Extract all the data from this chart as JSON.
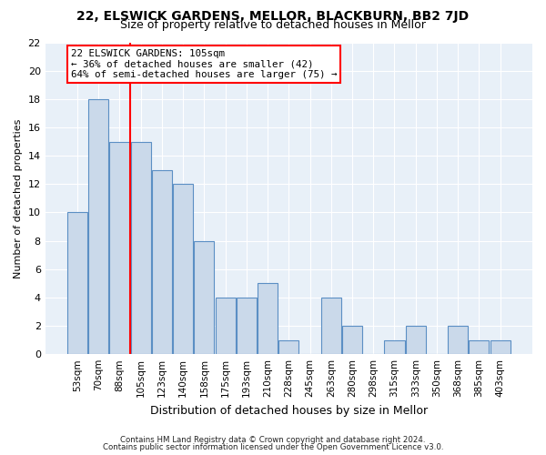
{
  "title1": "22, ELSWICK GARDENS, MELLOR, BLACKBURN, BB2 7JD",
  "title2": "Size of property relative to detached houses in Mellor",
  "xlabel": "Distribution of detached houses by size in Mellor",
  "ylabel": "Number of detached properties",
  "categories": [
    "53sqm",
    "70sqm",
    "88sqm",
    "105sqm",
    "123sqm",
    "140sqm",
    "158sqm",
    "175sqm",
    "193sqm",
    "210sqm",
    "228sqm",
    "245sqm",
    "263sqm",
    "280sqm",
    "298sqm",
    "315sqm",
    "333sqm",
    "350sqm",
    "368sqm",
    "385sqm",
    "403sqm"
  ],
  "values": [
    10,
    18,
    15,
    15,
    13,
    12,
    8,
    4,
    4,
    5,
    1,
    0,
    4,
    2,
    0,
    1,
    2,
    0,
    2,
    1,
    1
  ],
  "bar_color": "#cad9ea",
  "bar_edge_color": "#5b8fc4",
  "annotation_title": "22 ELSWICK GARDENS: 105sqm",
  "annotation_line1": "← 36% of detached houses are smaller (42)",
  "annotation_line2": "64% of semi-detached houses are larger (75) →",
  "ylim": [
    0,
    22
  ],
  "yticks": [
    0,
    2,
    4,
    6,
    8,
    10,
    12,
    14,
    16,
    18,
    20,
    22
  ],
  "footer1": "Contains HM Land Registry data © Crown copyright and database right 2024.",
  "footer2": "Contains public sector information licensed under the Open Government Licence v3.0.",
  "fig_bg_color": "#ffffff",
  "plot_bg_color": "#e8f0f8"
}
